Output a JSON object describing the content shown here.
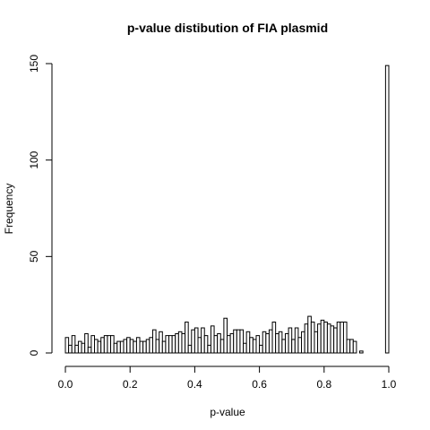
{
  "chart_data": {
    "type": "bar",
    "title": "p-value distibution of FIA plasmid",
    "xlabel": "p-value",
    "ylabel": "Frequency",
    "xlim": [
      0,
      1
    ],
    "ylim": [
      0,
      150
    ],
    "x_ticks": [
      "0.0",
      "0.2",
      "0.4",
      "0.6",
      "0.8",
      "1.0"
    ],
    "x_tick_values": [
      0,
      0.2,
      0.4,
      0.6,
      0.8,
      1.0
    ],
    "y_ticks": [
      "0",
      "50",
      "100",
      "150"
    ],
    "y_tick_values": [
      0,
      50,
      100,
      150
    ],
    "bin_width": 0.01,
    "bin_starts_from": 0,
    "values": [
      8,
      4,
      9,
      4,
      6,
      5,
      10,
      3,
      9,
      7,
      6,
      8,
      9,
      9,
      9,
      5,
      6,
      6,
      7,
      8,
      7,
      6,
      8,
      6,
      6,
      7,
      8,
      12,
      7,
      11,
      6,
      9,
      9,
      9,
      10,
      11,
      10,
      16,
      4,
      12,
      13,
      8,
      13,
      9,
      4,
      14,
      9,
      10,
      7,
      18,
      9,
      10,
      12,
      12,
      12,
      5,
      11,
      8,
      7,
      9,
      4,
      11,
      10,
      12,
      16,
      10,
      11,
      7,
      10,
      13,
      7,
      13,
      8,
      11,
      15,
      19,
      16,
      11,
      15,
      17,
      16,
      15,
      14,
      13,
      16,
      16,
      16,
      7,
      7,
      6,
      0,
      1,
      0,
      0,
      0,
      0,
      0,
      0,
      0,
      149
    ],
    "grid": false,
    "legend": "none"
  }
}
